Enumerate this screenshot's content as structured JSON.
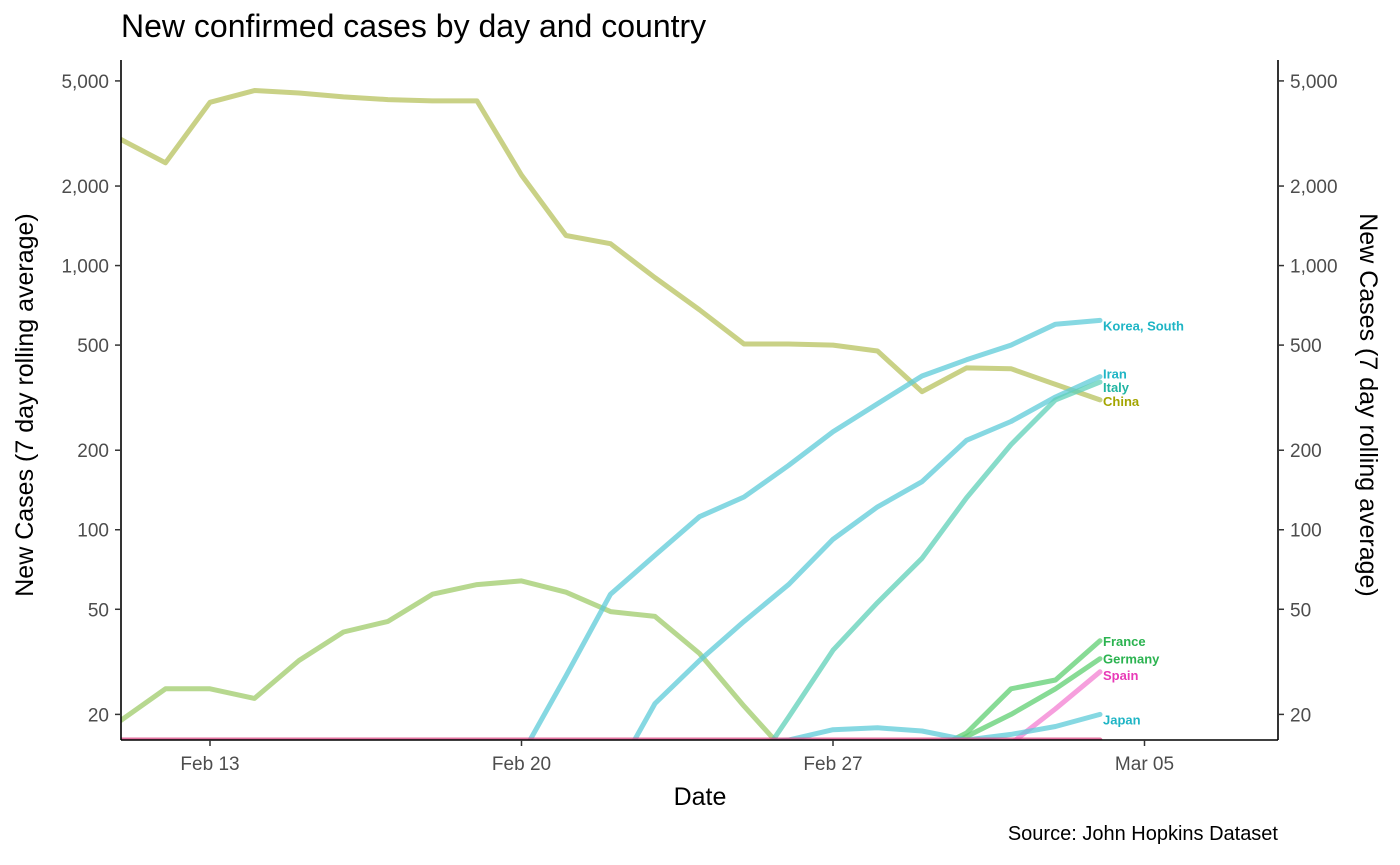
{
  "chart_data": {
    "type": "line",
    "title": "New confirmed cases by day and country",
    "caption": "Source: John Hopkins Dataset",
    "xlabel": "Date",
    "ylabel": "New Cases (7 day rolling average)",
    "ylabel_right": "New Cases (7 day rolling average)",
    "y_scale": "log",
    "ylim": [
      16,
      6000
    ],
    "xlim": [
      "2020-02-11",
      "2020-03-08"
    ],
    "x_ticks": [
      {
        "date": "2020-02-13",
        "label": "Feb 13"
      },
      {
        "date": "2020-02-20",
        "label": "Feb 20"
      },
      {
        "date": "2020-02-27",
        "label": "Feb 27"
      },
      {
        "date": "2020-03-05",
        "label": "Mar 05"
      }
    ],
    "y_ticks": [
      {
        "value": 20,
        "label": "20"
      },
      {
        "value": 50,
        "label": "50"
      },
      {
        "value": 100,
        "label": "100"
      },
      {
        "value": 200,
        "label": "200"
      },
      {
        "value": 500,
        "label": "500"
      },
      {
        "value": 1000,
        "label": "1,000"
      },
      {
        "value": 2000,
        "label": "2,000"
      },
      {
        "value": 5000,
        "label": "5,000"
      }
    ],
    "grid": false,
    "legend": "direct labels at line ends",
    "series": [
      {
        "name": "China",
        "color": "#b7c15e",
        "label_color": "#a3a500",
        "x": [
          "2020-02-11",
          "2020-02-12",
          "2020-02-13",
          "2020-02-14",
          "2020-02-15",
          "2020-02-16",
          "2020-02-17",
          "2020-02-18",
          "2020-02-19",
          "2020-02-20",
          "2020-02-21",
          "2020-02-22",
          "2020-02-23",
          "2020-02-24",
          "2020-02-25",
          "2020-02-26",
          "2020-02-27",
          "2020-02-28",
          "2020-02-29",
          "2020-03-01",
          "2020-03-02",
          "2020-03-03",
          "2020-03-04"
        ],
        "y": [
          3000,
          2450,
          4150,
          4600,
          4500,
          4350,
          4250,
          4200,
          4200,
          2200,
          1300,
          1210,
          900,
          680,
          505,
          505,
          500,
          475,
          333,
          410,
          407,
          355,
          310
        ]
      },
      {
        "name": "",
        "color": "#9fcb6a",
        "x": [
          "2020-02-11",
          "2020-02-12",
          "2020-02-13",
          "2020-02-14",
          "2020-02-15",
          "2020-02-16",
          "2020-02-17",
          "2020-02-18",
          "2020-02-19",
          "2020-02-20",
          "2020-02-21",
          "2020-02-22",
          "2020-02-23",
          "2020-02-24",
          "2020-02-25",
          "2020-02-26"
        ],
        "y": [
          19,
          25,
          25,
          23,
          32,
          41,
          45,
          57,
          62,
          64,
          58,
          49,
          47,
          34,
          21.5,
          14
        ]
      },
      {
        "name": "Korea, South",
        "color": "#5ecbd8",
        "label_color": "#1fb5c5",
        "x": [
          "2020-02-20",
          "2020-02-21",
          "2020-02-22",
          "2020-02-23",
          "2020-02-24",
          "2020-02-25",
          "2020-02-26",
          "2020-02-27",
          "2020-02-28",
          "2020-02-29",
          "2020-03-01",
          "2020-03-02",
          "2020-03-03",
          "2020-03-04"
        ],
        "y": [
          14,
          28,
          57,
          80,
          112,
          133,
          175,
          235,
          300,
          382,
          440,
          500,
          600,
          620
        ]
      },
      {
        "name": "Iran",
        "color": "#5ecbd8",
        "label_color": "#1fb5c5",
        "x": [
          "2020-02-22",
          "2020-02-23",
          "2020-02-24",
          "2020-02-25",
          "2020-02-26",
          "2020-02-27",
          "2020-02-28",
          "2020-02-29",
          "2020-03-01",
          "2020-03-02",
          "2020-03-03",
          "2020-03-04"
        ],
        "y": [
          11,
          22,
          32,
          45,
          62,
          92,
          122,
          152,
          218,
          257,
          318,
          380
        ]
      },
      {
        "name": "Italy",
        "color": "#5fd0b8",
        "label_color": "#22b5a3",
        "x": [
          "2020-02-25",
          "2020-02-26",
          "2020-02-27",
          "2020-02-28",
          "2020-02-29",
          "2020-03-01",
          "2020-03-02",
          "2020-03-03",
          "2020-03-04"
        ],
        "y": [
          11,
          19.5,
          35,
          53,
          78,
          132,
          210,
          310,
          362
        ]
      },
      {
        "name": "France",
        "color": "#5fcf71",
        "label_color": "#2bb350",
        "x": [
          "2020-02-29",
          "2020-03-01",
          "2020-03-02",
          "2020-03-03",
          "2020-03-04"
        ],
        "y": [
          14,
          17,
          25,
          27,
          38
        ]
      },
      {
        "name": "Germany",
        "color": "#5fcf71",
        "label_color": "#2bb350",
        "x": [
          "2020-02-29",
          "2020-03-01",
          "2020-03-02",
          "2020-03-03",
          "2020-03-04"
        ],
        "y": [
          13.5,
          16.5,
          20,
          25,
          32.5
        ]
      },
      {
        "name": "Spain",
        "color": "#f37fd2",
        "label_color": "#e83ab7",
        "x": [
          "2020-03-01",
          "2020-03-02",
          "2020-03-03",
          "2020-03-04"
        ],
        "y": [
          13,
          15.5,
          21,
          29
        ]
      },
      {
        "name": "Japan",
        "color": "#5ecbd8",
        "label_color": "#1fb5c5",
        "x": [
          "2020-02-25",
          "2020-02-26",
          "2020-02-27",
          "2020-02-28",
          "2020-02-29",
          "2020-03-01",
          "2020-03-02",
          "2020-03-03",
          "2020-03-04"
        ],
        "y": [
          15.5,
          16,
          17.5,
          17.8,
          17.3,
          16,
          16.8,
          18,
          20
        ]
      },
      {
        "name": "",
        "color": "#d9437f",
        "x": [
          "2020-02-11",
          "2020-03-04"
        ],
        "y": [
          16,
          16
        ]
      }
    ]
  }
}
